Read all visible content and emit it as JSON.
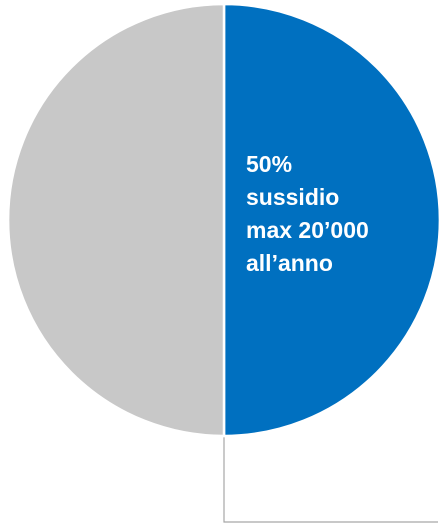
{
  "chart_data": {
    "type": "pie",
    "categories": [
      "",
      ""
    ],
    "values": [
      50,
      50
    ],
    "colors": [
      "#0070C0",
      "#C8C8C8"
    ],
    "slice_border_color": "#FFFFFF",
    "start_angle": "12 o'clock, clockwise",
    "leader_line_color": "#A6A6A6",
    "labels": [
      {
        "slice": 0,
        "lines": [
          "50%",
          "sussidio",
          "max 20’000",
          "all’anno"
        ],
        "color": "#FFFFFF"
      }
    ]
  }
}
